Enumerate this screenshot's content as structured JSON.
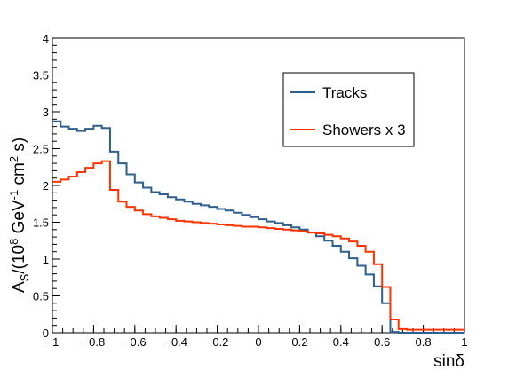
{
  "chart_data": {
    "type": "step",
    "title": "",
    "xlabel": "sinδ",
    "ylabel_parts": [
      "A",
      "S",
      "/(10",
      "8",
      " GeV",
      "-1",
      " cm",
      "2",
      " s)"
    ],
    "xlim": [
      -1,
      1
    ],
    "ylim": [
      0,
      4
    ],
    "x_ticks": [
      -1,
      -0.8,
      -0.6,
      -0.4,
      -0.2,
      0,
      0.2,
      0.4,
      0.6,
      0.8,
      1
    ],
    "x_tick_labels": [
      "−1",
      "−0.8",
      "−0.6",
      "−0.4",
      "−0.2",
      "0",
      "0.2",
      "0.4",
      "0.6",
      "0.8",
      "1"
    ],
    "y_ticks": [
      0,
      0.5,
      1,
      1.5,
      2,
      2.5,
      3,
      3.5,
      4
    ],
    "y_tick_labels": [
      "0",
      "0.5",
      "1",
      "1.5",
      "2",
      "2.5",
      "3",
      "3.5",
      "4"
    ],
    "bin_edges_start": -1,
    "bin_width": 0.04,
    "legend": {
      "position": "top-right"
    },
    "series": [
      {
        "name": "Tracks",
        "color": "#2e5f8e",
        "values": [
          2.87,
          2.8,
          2.77,
          2.74,
          2.77,
          2.81,
          2.78,
          2.46,
          2.3,
          2.15,
          2.04,
          1.97,
          1.91,
          1.88,
          1.84,
          1.81,
          1.78,
          1.75,
          1.73,
          1.71,
          1.68,
          1.66,
          1.63,
          1.6,
          1.57,
          1.54,
          1.51,
          1.49,
          1.46,
          1.43,
          1.4,
          1.36,
          1.31,
          1.25,
          1.18,
          1.1,
          1.01,
          0.91,
          0.79,
          0.63,
          0.4,
          0.01,
          0.0,
          0.0,
          0.0,
          0.0,
          0.0,
          0.0,
          0.0,
          0.0
        ]
      },
      {
        "name": "Showers x 3",
        "color": "#ff3300",
        "values": [
          2.05,
          2.08,
          2.12,
          2.18,
          2.24,
          2.3,
          2.33,
          1.94,
          1.78,
          1.71,
          1.66,
          1.61,
          1.58,
          1.56,
          1.54,
          1.52,
          1.51,
          1.5,
          1.49,
          1.48,
          1.47,
          1.46,
          1.45,
          1.44,
          1.44,
          1.43,
          1.42,
          1.41,
          1.4,
          1.39,
          1.38,
          1.36,
          1.35,
          1.33,
          1.31,
          1.28,
          1.24,
          1.18,
          1.1,
          0.93,
          0.62,
          0.18,
          0.05,
          0.04,
          0.04,
          0.04,
          0.04,
          0.04,
          0.04,
          0.04
        ]
      }
    ]
  }
}
